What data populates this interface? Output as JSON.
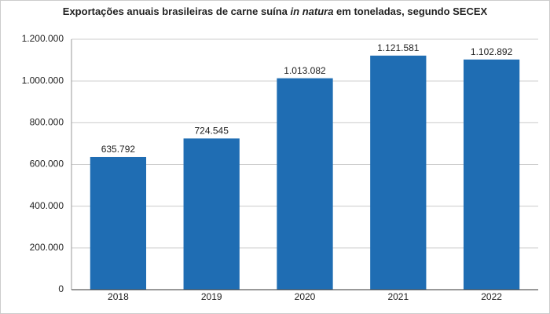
{
  "chart_data": {
    "type": "bar",
    "title": [
      "Exportações anuais brasileiras de carne suína ",
      "in natura",
      " em toneladas, segundo SECEX"
    ],
    "categories": [
      "2018",
      "2019",
      "2020",
      "2021",
      "2022"
    ],
    "values": [
      635792,
      724545,
      1013082,
      1121581,
      1102892
    ],
    "value_labels": [
      "635.792",
      "724.545",
      "1.013.082",
      "1.121.581",
      "1.102.892"
    ],
    "color": "#1f6db3",
    "ylim": [
      0,
      1200000
    ],
    "yticks": [
      0,
      {
        "value": 200000,
        "label": "200.000"
      },
      {
        "value": 400000,
        "label": "400.000"
      },
      {
        "value": 600000,
        "label": "600.000"
      },
      {
        "value": 800000,
        "label": "800.000"
      },
      {
        "value": 1000000,
        "label": "1.000.000"
      },
      {
        "value": 1200000,
        "label": "1.200.000"
      }
    ],
    "grid": true
  }
}
